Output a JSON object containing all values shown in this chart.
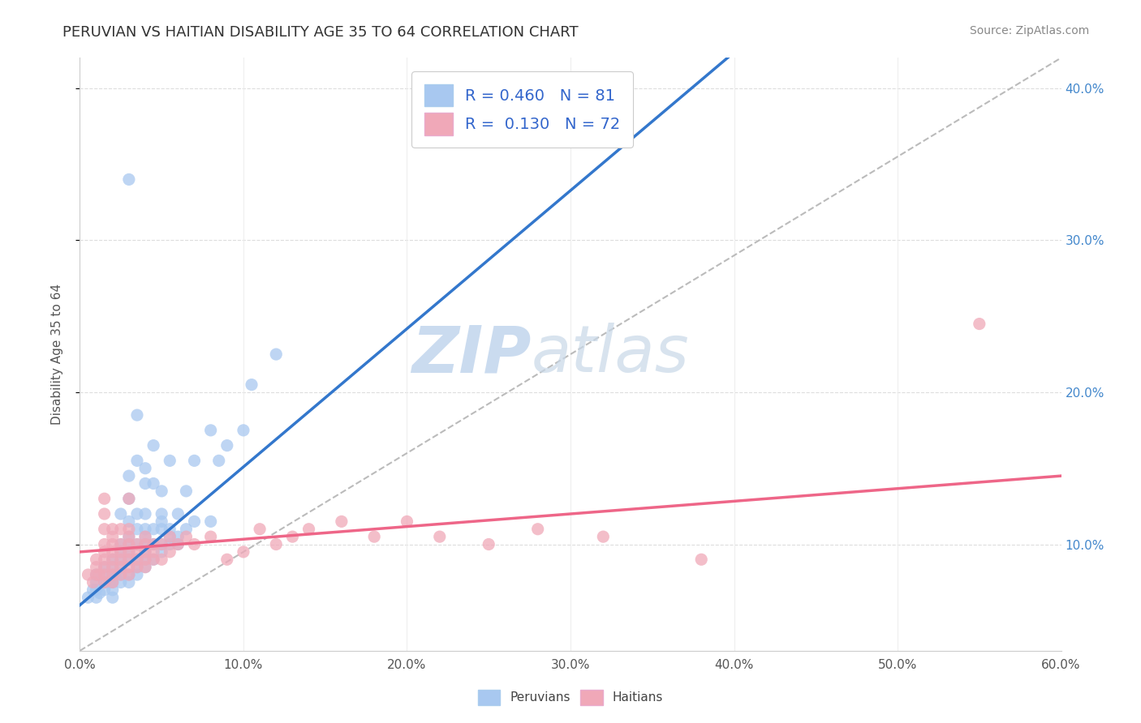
{
  "title": "PERUVIAN VS HAITIAN DISABILITY AGE 35 TO 64 CORRELATION CHART",
  "source_text": "Source: ZipAtlas.com",
  "ylabel": "Disability Age 35 to 64",
  "xmin": 0.0,
  "xmax": 0.6,
  "ymin": 0.03,
  "ymax": 0.42,
  "peruvian_color": "#a8c8f0",
  "haitian_color": "#f0a8b8",
  "peruvian_line_color": "#3377cc",
  "haitian_line_color": "#ee6688",
  "trend_line_color": "#bbbbbb",
  "watermark_color": "#d0e4f0",
  "background_color": "#ffffff",
  "legend_text_color": "#3366cc",
  "peruvian_scatter": [
    [
      0.005,
      0.065
    ],
    [
      0.008,
      0.07
    ],
    [
      0.01,
      0.065
    ],
    [
      0.01,
      0.07
    ],
    [
      0.01,
      0.075
    ],
    [
      0.01,
      0.08
    ],
    [
      0.012,
      0.068
    ],
    [
      0.015,
      0.07
    ],
    [
      0.015,
      0.075
    ],
    [
      0.015,
      0.08
    ],
    [
      0.015,
      0.085
    ],
    [
      0.018,
      0.075
    ],
    [
      0.02,
      0.065
    ],
    [
      0.02,
      0.07
    ],
    [
      0.02,
      0.075
    ],
    [
      0.02,
      0.08
    ],
    [
      0.02,
      0.085
    ],
    [
      0.02,
      0.09
    ],
    [
      0.022,
      0.08
    ],
    [
      0.025,
      0.075
    ],
    [
      0.025,
      0.08
    ],
    [
      0.025,
      0.085
    ],
    [
      0.025,
      0.09
    ],
    [
      0.025,
      0.095
    ],
    [
      0.025,
      0.1
    ],
    [
      0.025,
      0.12
    ],
    [
      0.03,
      0.075
    ],
    [
      0.03,
      0.08
    ],
    [
      0.03,
      0.09
    ],
    [
      0.03,
      0.095
    ],
    [
      0.03,
      0.1
    ],
    [
      0.03,
      0.105
    ],
    [
      0.03,
      0.115
    ],
    [
      0.03,
      0.13
    ],
    [
      0.03,
      0.145
    ],
    [
      0.035,
      0.08
    ],
    [
      0.035,
      0.085
    ],
    [
      0.035,
      0.09
    ],
    [
      0.035,
      0.1
    ],
    [
      0.035,
      0.11
    ],
    [
      0.035,
      0.12
    ],
    [
      0.035,
      0.155
    ],
    [
      0.035,
      0.185
    ],
    [
      0.04,
      0.085
    ],
    [
      0.04,
      0.09
    ],
    [
      0.04,
      0.095
    ],
    [
      0.04,
      0.1
    ],
    [
      0.04,
      0.105
    ],
    [
      0.04,
      0.11
    ],
    [
      0.04,
      0.12
    ],
    [
      0.04,
      0.14
    ],
    [
      0.04,
      0.15
    ],
    [
      0.045,
      0.09
    ],
    [
      0.045,
      0.1
    ],
    [
      0.045,
      0.11
    ],
    [
      0.045,
      0.14
    ],
    [
      0.045,
      0.165
    ],
    [
      0.05,
      0.095
    ],
    [
      0.05,
      0.1
    ],
    [
      0.05,
      0.11
    ],
    [
      0.05,
      0.115
    ],
    [
      0.05,
      0.12
    ],
    [
      0.05,
      0.135
    ],
    [
      0.055,
      0.1
    ],
    [
      0.055,
      0.105
    ],
    [
      0.055,
      0.11
    ],
    [
      0.055,
      0.155
    ],
    [
      0.06,
      0.1
    ],
    [
      0.06,
      0.105
    ],
    [
      0.06,
      0.12
    ],
    [
      0.065,
      0.11
    ],
    [
      0.065,
      0.135
    ],
    [
      0.07,
      0.115
    ],
    [
      0.07,
      0.155
    ],
    [
      0.08,
      0.115
    ],
    [
      0.08,
      0.175
    ],
    [
      0.085,
      0.155
    ],
    [
      0.09,
      0.165
    ],
    [
      0.1,
      0.175
    ],
    [
      0.105,
      0.205
    ],
    [
      0.12,
      0.225
    ],
    [
      0.03,
      0.34
    ]
  ],
  "haitian_scatter": [
    [
      0.005,
      0.08
    ],
    [
      0.008,
      0.075
    ],
    [
      0.01,
      0.08
    ],
    [
      0.01,
      0.085
    ],
    [
      0.01,
      0.09
    ],
    [
      0.012,
      0.08
    ],
    [
      0.015,
      0.075
    ],
    [
      0.015,
      0.08
    ],
    [
      0.015,
      0.085
    ],
    [
      0.015,
      0.09
    ],
    [
      0.015,
      0.095
    ],
    [
      0.015,
      0.1
    ],
    [
      0.015,
      0.11
    ],
    [
      0.015,
      0.12
    ],
    [
      0.015,
      0.13
    ],
    [
      0.02,
      0.075
    ],
    [
      0.02,
      0.08
    ],
    [
      0.02,
      0.085
    ],
    [
      0.02,
      0.09
    ],
    [
      0.02,
      0.095
    ],
    [
      0.02,
      0.1
    ],
    [
      0.02,
      0.105
    ],
    [
      0.02,
      0.11
    ],
    [
      0.025,
      0.08
    ],
    [
      0.025,
      0.085
    ],
    [
      0.025,
      0.09
    ],
    [
      0.025,
      0.095
    ],
    [
      0.025,
      0.1
    ],
    [
      0.025,
      0.11
    ],
    [
      0.03,
      0.08
    ],
    [
      0.03,
      0.085
    ],
    [
      0.03,
      0.09
    ],
    [
      0.03,
      0.095
    ],
    [
      0.03,
      0.1
    ],
    [
      0.03,
      0.105
    ],
    [
      0.03,
      0.11
    ],
    [
      0.03,
      0.13
    ],
    [
      0.035,
      0.085
    ],
    [
      0.035,
      0.09
    ],
    [
      0.035,
      0.095
    ],
    [
      0.035,
      0.1
    ],
    [
      0.04,
      0.085
    ],
    [
      0.04,
      0.09
    ],
    [
      0.04,
      0.095
    ],
    [
      0.04,
      0.1
    ],
    [
      0.04,
      0.105
    ],
    [
      0.045,
      0.09
    ],
    [
      0.045,
      0.095
    ],
    [
      0.045,
      0.1
    ],
    [
      0.05,
      0.09
    ],
    [
      0.05,
      0.1
    ],
    [
      0.055,
      0.095
    ],
    [
      0.055,
      0.105
    ],
    [
      0.06,
      0.1
    ],
    [
      0.065,
      0.105
    ],
    [
      0.07,
      0.1
    ],
    [
      0.08,
      0.105
    ],
    [
      0.09,
      0.09
    ],
    [
      0.1,
      0.095
    ],
    [
      0.11,
      0.11
    ],
    [
      0.12,
      0.1
    ],
    [
      0.13,
      0.105
    ],
    [
      0.14,
      0.11
    ],
    [
      0.16,
      0.115
    ],
    [
      0.18,
      0.105
    ],
    [
      0.2,
      0.115
    ],
    [
      0.22,
      0.105
    ],
    [
      0.25,
      0.1
    ],
    [
      0.28,
      0.11
    ],
    [
      0.32,
      0.105
    ],
    [
      0.38,
      0.09
    ],
    [
      0.55,
      0.245
    ]
  ],
  "peruvian_trend": [
    0.0,
    0.06,
    0.22,
    0.26
  ],
  "haitian_trend": [
    0.0,
    0.095,
    0.6,
    0.145
  ]
}
